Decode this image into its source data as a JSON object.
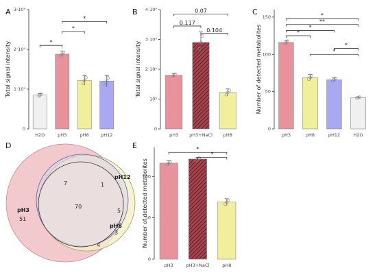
{
  "colors": {
    "H2O": "#f0f0f0",
    "pH3": "#e8939b",
    "pH8": "#f1ee9c",
    "pH12": "#a9a9f3",
    "NaCl": "#a8434d"
  },
  "chart_data": [
    {
      "panel": "A",
      "type": "bar",
      "ylabel": "Total signal intensity",
      "yticks": [
        {
          "v": 0,
          "t": "0"
        },
        {
          "v": 1,
          "t": "1·10⁹"
        },
        {
          "v": 2,
          "t": "2·10⁹"
        },
        {
          "v": 3,
          "t": "3·10⁹"
        }
      ],
      "ylim": [
        0,
        3
      ],
      "categories": [
        "H2O",
        "pH3",
        "pH8",
        "pH12"
      ],
      "values": [
        0.85,
        1.88,
        1.22,
        1.2
      ],
      "errors": [
        0.04,
        0.08,
        0.12,
        0.14
      ],
      "colors": [
        "#f0f0f0",
        "#e8939b",
        "#f1ee9c",
        "#a9a9f3"
      ],
      "hatch": [
        false,
        false,
        false,
        false
      ],
      "brackets": [
        {
          "a": 0,
          "b": 1,
          "y": 2.1,
          "label": "*"
        },
        {
          "a": 1,
          "b": 2,
          "y": 2.45,
          "label": "*"
        },
        {
          "a": 1,
          "b": 3,
          "y": 2.7,
          "label": "*"
        }
      ]
    },
    {
      "panel": "B",
      "type": "bar",
      "ylabel": "Total signal intensity",
      "yticks": [
        {
          "v": 0,
          "t": "0"
        },
        {
          "v": 1,
          "t": "10⁹"
        },
        {
          "v": 2,
          "t": "2·10⁹"
        },
        {
          "v": 3,
          "t": "3·10⁹"
        },
        {
          "v": 4,
          "t": "4·10⁹"
        }
      ],
      "ylim": [
        0,
        4
      ],
      "categories": [
        "pH3",
        "pH3+NaCl",
        "pH8"
      ],
      "values": [
        1.8,
        2.9,
        1.22
      ],
      "errors": [
        0.06,
        0.35,
        0.12
      ],
      "colors": [
        "#e8939b",
        "#a8434d",
        "#f1ee9c"
      ],
      "hatch": [
        false,
        true,
        false
      ],
      "brackets": [
        {
          "a": 0,
          "b": 1,
          "y": 3.45,
          "label": "0.117"
        },
        {
          "a": 1,
          "b": 2,
          "y": 3.2,
          "label": "0.104"
        },
        {
          "a": 0,
          "b": 2,
          "y": 3.85,
          "label": "0.07"
        }
      ]
    },
    {
      "panel": "C",
      "type": "bar",
      "ylabel": "Number of detected metabolites",
      "yticks": [
        {
          "v": 0,
          "t": "0"
        },
        {
          "v": 50,
          "t": "50"
        },
        {
          "v": 100,
          "t": "100"
        },
        {
          "v": 150,
          "t": "150"
        }
      ],
      "ylim": [
        0,
        160
      ],
      "categories": [
        "pH3",
        "pH8",
        "pH12",
        "H2O"
      ],
      "values": [
        116,
        69,
        66,
        42
      ],
      "errors": [
        3,
        4,
        3,
        1
      ],
      "colors": [
        "#e8939b",
        "#f1ee9c",
        "#a9a9f3",
        "#f0f0f0"
      ],
      "hatch": [
        false,
        false,
        false,
        false
      ],
      "brackets": [
        {
          "a": 0,
          "b": 1,
          "y": 125,
          "label": "*"
        },
        {
          "a": 0,
          "b": 2,
          "y": 132,
          "label": "*"
        },
        {
          "a": 0,
          "b": 3,
          "y": 148,
          "label": "*"
        },
        {
          "a": 0,
          "b": 3,
          "y": 140,
          "label": "**"
        },
        {
          "a": 1,
          "b": 3,
          "y": 100,
          "label": "*"
        },
        {
          "a": 2,
          "b": 3,
          "y": 108,
          "label": "*"
        }
      ]
    },
    {
      "panel": "E",
      "type": "bar",
      "ylabel": "Number of detected metabolites",
      "yticks": [
        {
          "v": 0,
          "t": "0"
        },
        {
          "v": 50,
          "t": "50"
        },
        {
          "v": 100,
          "t": "100"
        }
      ],
      "ylim": [
        0,
        135
      ],
      "categories": [
        "pH3",
        "pH3+NaCl",
        "pH8"
      ],
      "values": [
        116,
        121,
        69
      ],
      "errors": [
        3,
        2,
        4
      ],
      "colors": [
        "#e8939b",
        "#a8434d",
        "#f1ee9c"
      ],
      "hatch": [
        false,
        true,
        false
      ],
      "brackets": [
        {
          "a": 0,
          "b": 2,
          "y": 129,
          "label": "*"
        },
        {
          "a": 1,
          "b": 2,
          "y": 123,
          "label": "*"
        }
      ]
    }
  ],
  "venn": {
    "panel": "D",
    "type": "venn",
    "sets": [
      {
        "name": "pH3",
        "only": "51"
      },
      {
        "name": "pH12",
        "only": "1"
      },
      {
        "name": "pH8",
        "only": "3"
      }
    ],
    "regions": {
      "pH3_pH12": "7",
      "pH12_pH8": "5",
      "pH3_pH8": "4",
      "all": "70"
    }
  }
}
